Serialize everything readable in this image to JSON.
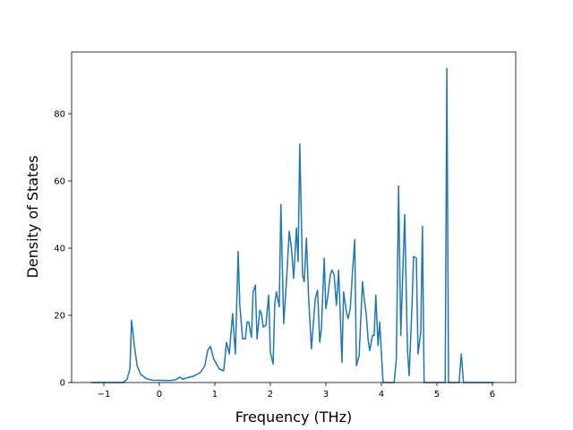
{
  "chart_data": {
    "type": "line",
    "x_label": "Frequency (THz)",
    "y_label": "Density of States",
    "xlim": [
      -1.58,
      6.42
    ],
    "ylim": [
      0,
      98.4
    ],
    "xticks": [
      {
        "value": -1,
        "label": "−1"
      },
      0,
      1,
      2,
      3,
      4,
      5,
      6
    ],
    "yticks": [
      0,
      20,
      40,
      60,
      80
    ],
    "series": [
      {
        "color": "#1f77b4",
        "x": [
          -1.23,
          -0.65,
          -0.58,
          -0.53,
          -0.5,
          -0.45,
          -0.4,
          -0.34,
          -0.24,
          -0.13,
          0.19,
          0.29,
          0.37,
          0.42,
          0.52,
          0.63,
          0.74,
          0.82,
          0.87,
          0.92,
          0.98,
          1.03,
          1.08,
          1.16,
          1.21,
          1.26,
          1.32,
          1.37,
          1.42,
          1.45,
          1.5,
          1.55,
          1.58,
          1.61,
          1.66,
          1.69,
          1.73,
          1.76,
          1.81,
          1.84,
          1.87,
          1.92,
          1.97,
          2.0,
          2.05,
          2.08,
          2.11,
          2.16,
          2.19,
          2.24,
          2.29,
          2.34,
          2.38,
          2.42,
          2.47,
          2.5,
          2.53,
          2.58,
          2.61,
          2.65,
          2.69,
          2.74,
          2.81,
          2.85,
          2.89,
          2.92,
          2.97,
          3.0,
          3.03,
          3.08,
          3.11,
          3.15,
          3.19,
          3.23,
          3.26,
          3.29,
          3.32,
          3.37,
          3.4,
          3.44,
          3.48,
          3.52,
          3.55,
          3.6,
          3.66,
          3.69,
          3.73,
          3.76,
          3.79,
          3.84,
          3.87,
          3.9,
          3.94,
          3.97,
          4.03,
          4.23,
          4.27,
          4.31,
          4.35,
          4.42,
          4.47,
          4.5,
          4.55,
          4.58,
          4.63,
          4.66,
          4.71,
          4.74,
          4.77,
          5.15,
          5.18,
          5.21,
          5.4,
          5.44,
          5.48,
          6.03
        ],
        "values": [
          0,
          0,
          1,
          4,
          18.5,
          11,
          5,
          2.5,
          1.2,
          0.7,
          0.6,
          0.8,
          1.6,
          1,
          1.5,
          2,
          3,
          5,
          9.5,
          10.8,
          7,
          5.5,
          4,
          3.5,
          12,
          8.5,
          20.5,
          8.5,
          39,
          23,
          13,
          13,
          18,
          18,
          13.5,
          27,
          29,
          13,
          21.5,
          20.5,
          16.5,
          17,
          26,
          9,
          5.5,
          23.5,
          27,
          22.5,
          53,
          17.5,
          30,
          45,
          40,
          31,
          46,
          36,
          71,
          32,
          30,
          43,
          25,
          10,
          25,
          27.5,
          12,
          16,
          37,
          22,
          25,
          32,
          33.5,
          32,
          23,
          33.5,
          20,
          6,
          27,
          21,
          19,
          22,
          33,
          42.5,
          5,
          8,
          30,
          25,
          20,
          13,
          9.5,
          14,
          14,
          26,
          11,
          18,
          0,
          0,
          7,
          58.5,
          14,
          50,
          10,
          2,
          22,
          37.5,
          37,
          8.5,
          15,
          46.5,
          0,
          0,
          93.5,
          0,
          0,
          8.5,
          0,
          0
        ]
      }
    ]
  }
}
